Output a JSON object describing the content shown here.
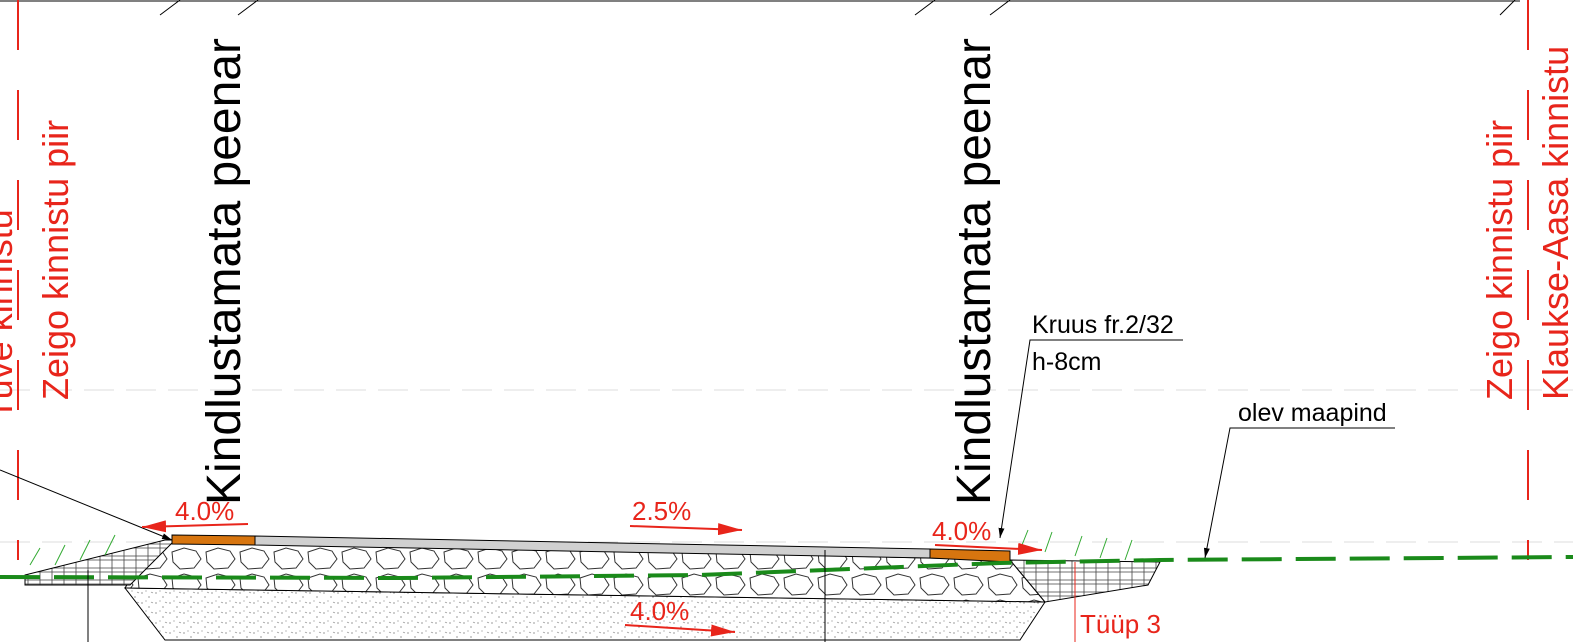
{
  "left_labels": {
    "outer": "Tuve kinnistu",
    "inner": "Zeigo  kinnistu piir"
  },
  "right_labels": {
    "inner": "Zeigo  kinnistu piir",
    "outer": "Klaukse-Aasa kinnistu"
  },
  "shoulders": [
    "Kindlustamata peenar",
    "Kindlustamata peenar"
  ],
  "material": {
    "name": "Kruus fr.2/32",
    "thickness": "h-8cm"
  },
  "ground": "olev maapind",
  "slopes": {
    "left_shoulder": "4.0%",
    "carriageway": "2.5%",
    "right_shoulder": "4.0%",
    "base": "4.0%"
  },
  "type_label": "Tüüp 3"
}
